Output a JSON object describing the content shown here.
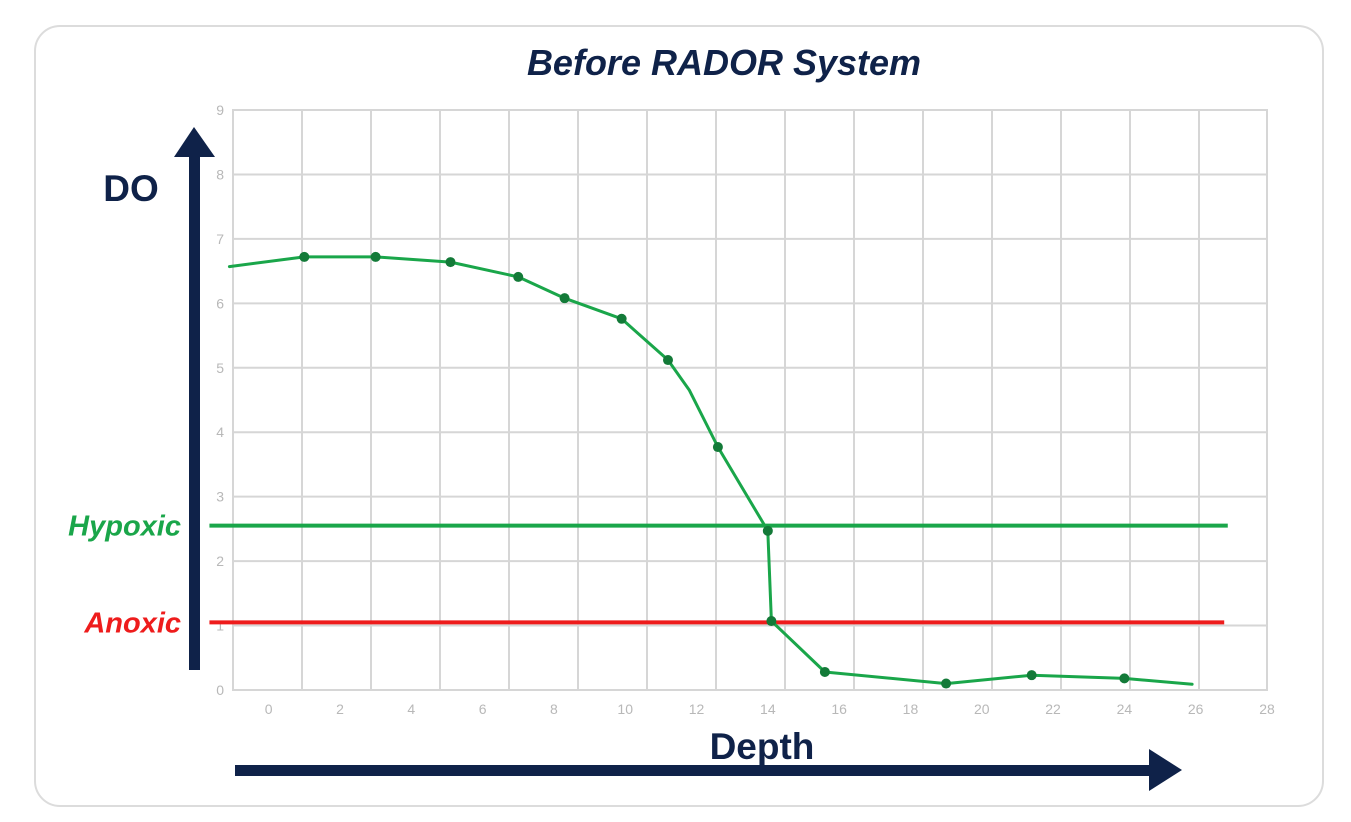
{
  "chart_data": {
    "type": "line",
    "title": "Before RADOR System",
    "xlabel": "Depth",
    "ylabel": "DO",
    "xlim": [
      -1,
      28
    ],
    "ylim": [
      0,
      9
    ],
    "x_ticks": [
      0,
      2,
      4,
      6,
      8,
      10,
      12,
      14,
      16,
      18,
      20,
      22,
      24,
      26,
      28
    ],
    "y_ticks": [
      0,
      1,
      2,
      3,
      4,
      5,
      6,
      7,
      8,
      9
    ],
    "grid": true,
    "series": [
      {
        "color": "#1aa64a",
        "points": [
          {
            "x": -1.1,
            "y": 6.57,
            "marker": false
          },
          {
            "x": 1.0,
            "y": 6.72,
            "marker": true
          },
          {
            "x": 3.0,
            "y": 6.72,
            "marker": true
          },
          {
            "x": 5.1,
            "y": 6.64,
            "marker": true
          },
          {
            "x": 7.0,
            "y": 6.41,
            "marker": true
          },
          {
            "x": 8.3,
            "y": 6.08,
            "marker": true
          },
          {
            "x": 9.9,
            "y": 5.76,
            "marker": true
          },
          {
            "x": 11.2,
            "y": 5.12,
            "marker": true
          },
          {
            "x": 11.8,
            "y": 4.65,
            "marker": false
          },
          {
            "x": 12.6,
            "y": 3.77,
            "marker": true
          },
          {
            "x": 14.0,
            "y": 2.47,
            "marker": true
          },
          {
            "x": 14.1,
            "y": 1.07,
            "marker": true
          },
          {
            "x": 15.6,
            "y": 0.28,
            "marker": true
          },
          {
            "x": 19.0,
            "y": 0.1,
            "marker": true
          },
          {
            "x": 21.4,
            "y": 0.23,
            "marker": true
          },
          {
            "x": 24.0,
            "y": 0.18,
            "marker": true
          },
          {
            "x": 25.9,
            "y": 0.09,
            "marker": false
          }
        ]
      }
    ],
    "reference_lines": [
      {
        "label": "Hypoxic",
        "y": 2.55,
        "x_start": -1.1,
        "x_end": 26.9,
        "color": "#1aa64a"
      },
      {
        "label": "Anoxic",
        "y": 1.05,
        "x_start": -1.1,
        "x_end": 26.8,
        "color": "#ee1c1c"
      }
    ],
    "colors": {
      "title": "#0f2249",
      "axis_arrows": "#0f2249",
      "grid": "#d6d6d6",
      "tick_labels": "#b8b8b8",
      "marker": "#137a38"
    }
  }
}
